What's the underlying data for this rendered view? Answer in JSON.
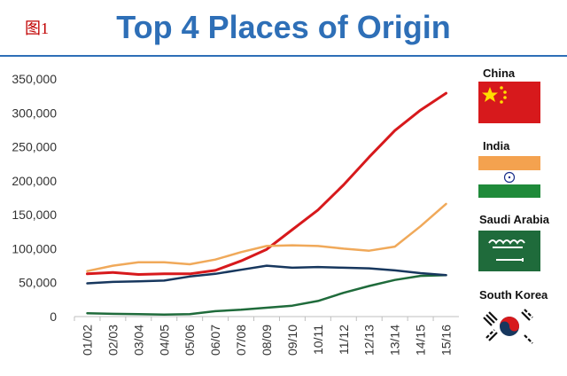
{
  "figure_label": "图1",
  "title": "Top 4 Places of Origin",
  "legend": {
    "china": "China",
    "india": "India",
    "saudi": "Saudi Arabia",
    "korea": "South Korea"
  },
  "colors": {
    "title": "#2e6fb7",
    "china": "#d7191c",
    "india": "#f0a95a",
    "saudi": "#1f6b3b",
    "korea": "#17375e"
  },
  "chart_data": {
    "type": "line",
    "title": "Top 4 Places of Origin",
    "categories": [
      "01/02",
      "02/03",
      "03/04",
      "04/05",
      "05/06",
      "06/07",
      "07/08",
      "08/09",
      "09/10",
      "10/11",
      "11/12",
      "12/13",
      "13/14",
      "14/15",
      "15/16"
    ],
    "ylim": [
      0,
      350000
    ],
    "yticks": [
      0,
      50000,
      100000,
      150000,
      200000,
      250000,
      300000,
      350000
    ],
    "ytick_labels": [
      "0",
      "50,000",
      "100,000",
      "150,000",
      "200,000",
      "250,000",
      "300,000",
      "350,000"
    ],
    "grid": false,
    "legend_position": "right",
    "series": [
      {
        "name": "China",
        "key": "china",
        "values": [
          63000,
          65000,
          62000,
          63000,
          63000,
          68000,
          82000,
          99000,
          128000,
          157000,
          194000,
          235000,
          274000,
          304000,
          329000
        ]
      },
      {
        "name": "India",
        "key": "india",
        "values": [
          67000,
          75000,
          80000,
          80000,
          77000,
          84000,
          95000,
          104000,
          105000,
          104000,
          100000,
          97000,
          103000,
          133000,
          166000
        ]
      },
      {
        "name": "Saudi Arabia",
        "key": "saudi",
        "values": [
          5000,
          4000,
          3500,
          3000,
          3500,
          8000,
          10000,
          13000,
          16000,
          23000,
          35000,
          45000,
          54000,
          60000,
          61000
        ]
      },
      {
        "name": "South Korea",
        "key": "korea",
        "values": [
          49000,
          51000,
          52000,
          53000,
          59000,
          63000,
          69000,
          75000,
          72000,
          73000,
          72000,
          71000,
          68000,
          64000,
          61000
        ]
      }
    ]
  }
}
